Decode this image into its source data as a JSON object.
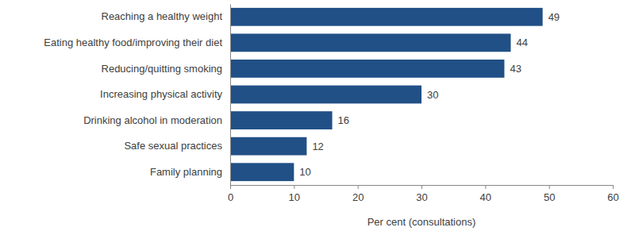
{
  "chart_data": {
    "type": "bar",
    "orientation": "horizontal",
    "categories": [
      "Reaching a healthy weight",
      "Eating healthy food/improving their diet",
      "Reducing/quitting smoking",
      "Increasing physical activity",
      "Drinking alcohol in moderation",
      "Safe sexual practices",
      "Family planning"
    ],
    "values": [
      49,
      44,
      43,
      30,
      16,
      12,
      10
    ],
    "color": "#215086",
    "x_label": "Per cent (consultations)",
    "xlim": [
      0,
      60
    ],
    "xticks": [
      0,
      10,
      20,
      30,
      40,
      50,
      60
    ],
    "grid": false,
    "data_labels": true
  }
}
